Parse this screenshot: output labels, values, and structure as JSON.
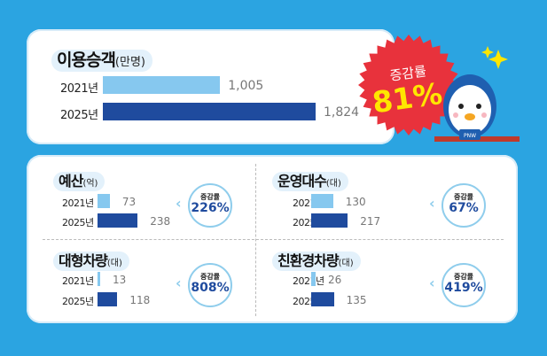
{
  "chart_data": [
    {
      "type": "bar",
      "orientation": "horizontal",
      "title": "이용승객",
      "unit": "(만명)",
      "categories": [
        "2021년",
        "2025년"
      ],
      "values": [
        1005,
        1824
      ],
      "value_labels": [
        "1,005",
        "1,824"
      ],
      "change_label": "증감률",
      "change": "81%"
    },
    {
      "type": "bar",
      "orientation": "horizontal",
      "title": "예산",
      "unit": "(억)",
      "categories": [
        "2021년",
        "2025년"
      ],
      "values": [
        73,
        238
      ],
      "value_labels": [
        "73",
        "238"
      ],
      "change_label": "증감률",
      "change": "226%"
    },
    {
      "type": "bar",
      "orientation": "horizontal",
      "title": "운영대수",
      "unit": "(대)",
      "categories": [
        "2021년",
        "2025년"
      ],
      "values": [
        130,
        217
      ],
      "value_labels": [
        "130",
        "217"
      ],
      "change_label": "증감률",
      "change": "67%"
    },
    {
      "type": "bar",
      "orientation": "horizontal",
      "title": "대형차량",
      "unit": "(대)",
      "categories": [
        "2021년",
        "2025년"
      ],
      "values": [
        13,
        118
      ],
      "value_labels": [
        "13",
        "118"
      ],
      "change_label": "증감률",
      "change": "808%"
    },
    {
      "type": "bar",
      "orientation": "horizontal",
      "title": "친환경차량",
      "unit": "(대)",
      "categories": [
        "2021년",
        "2025년"
      ],
      "values": [
        26,
        135
      ],
      "value_labels": [
        "26",
        "135"
      ],
      "change_label": "증감률",
      "change": "419%"
    }
  ],
  "colors": {
    "background": "#2ba4e1",
    "bar_2021": "#86c8ef",
    "bar_2025": "#1f4b9e",
    "badge": "#e8323c",
    "badge_number": "#ffe600"
  },
  "mascot_badge": "PNW"
}
